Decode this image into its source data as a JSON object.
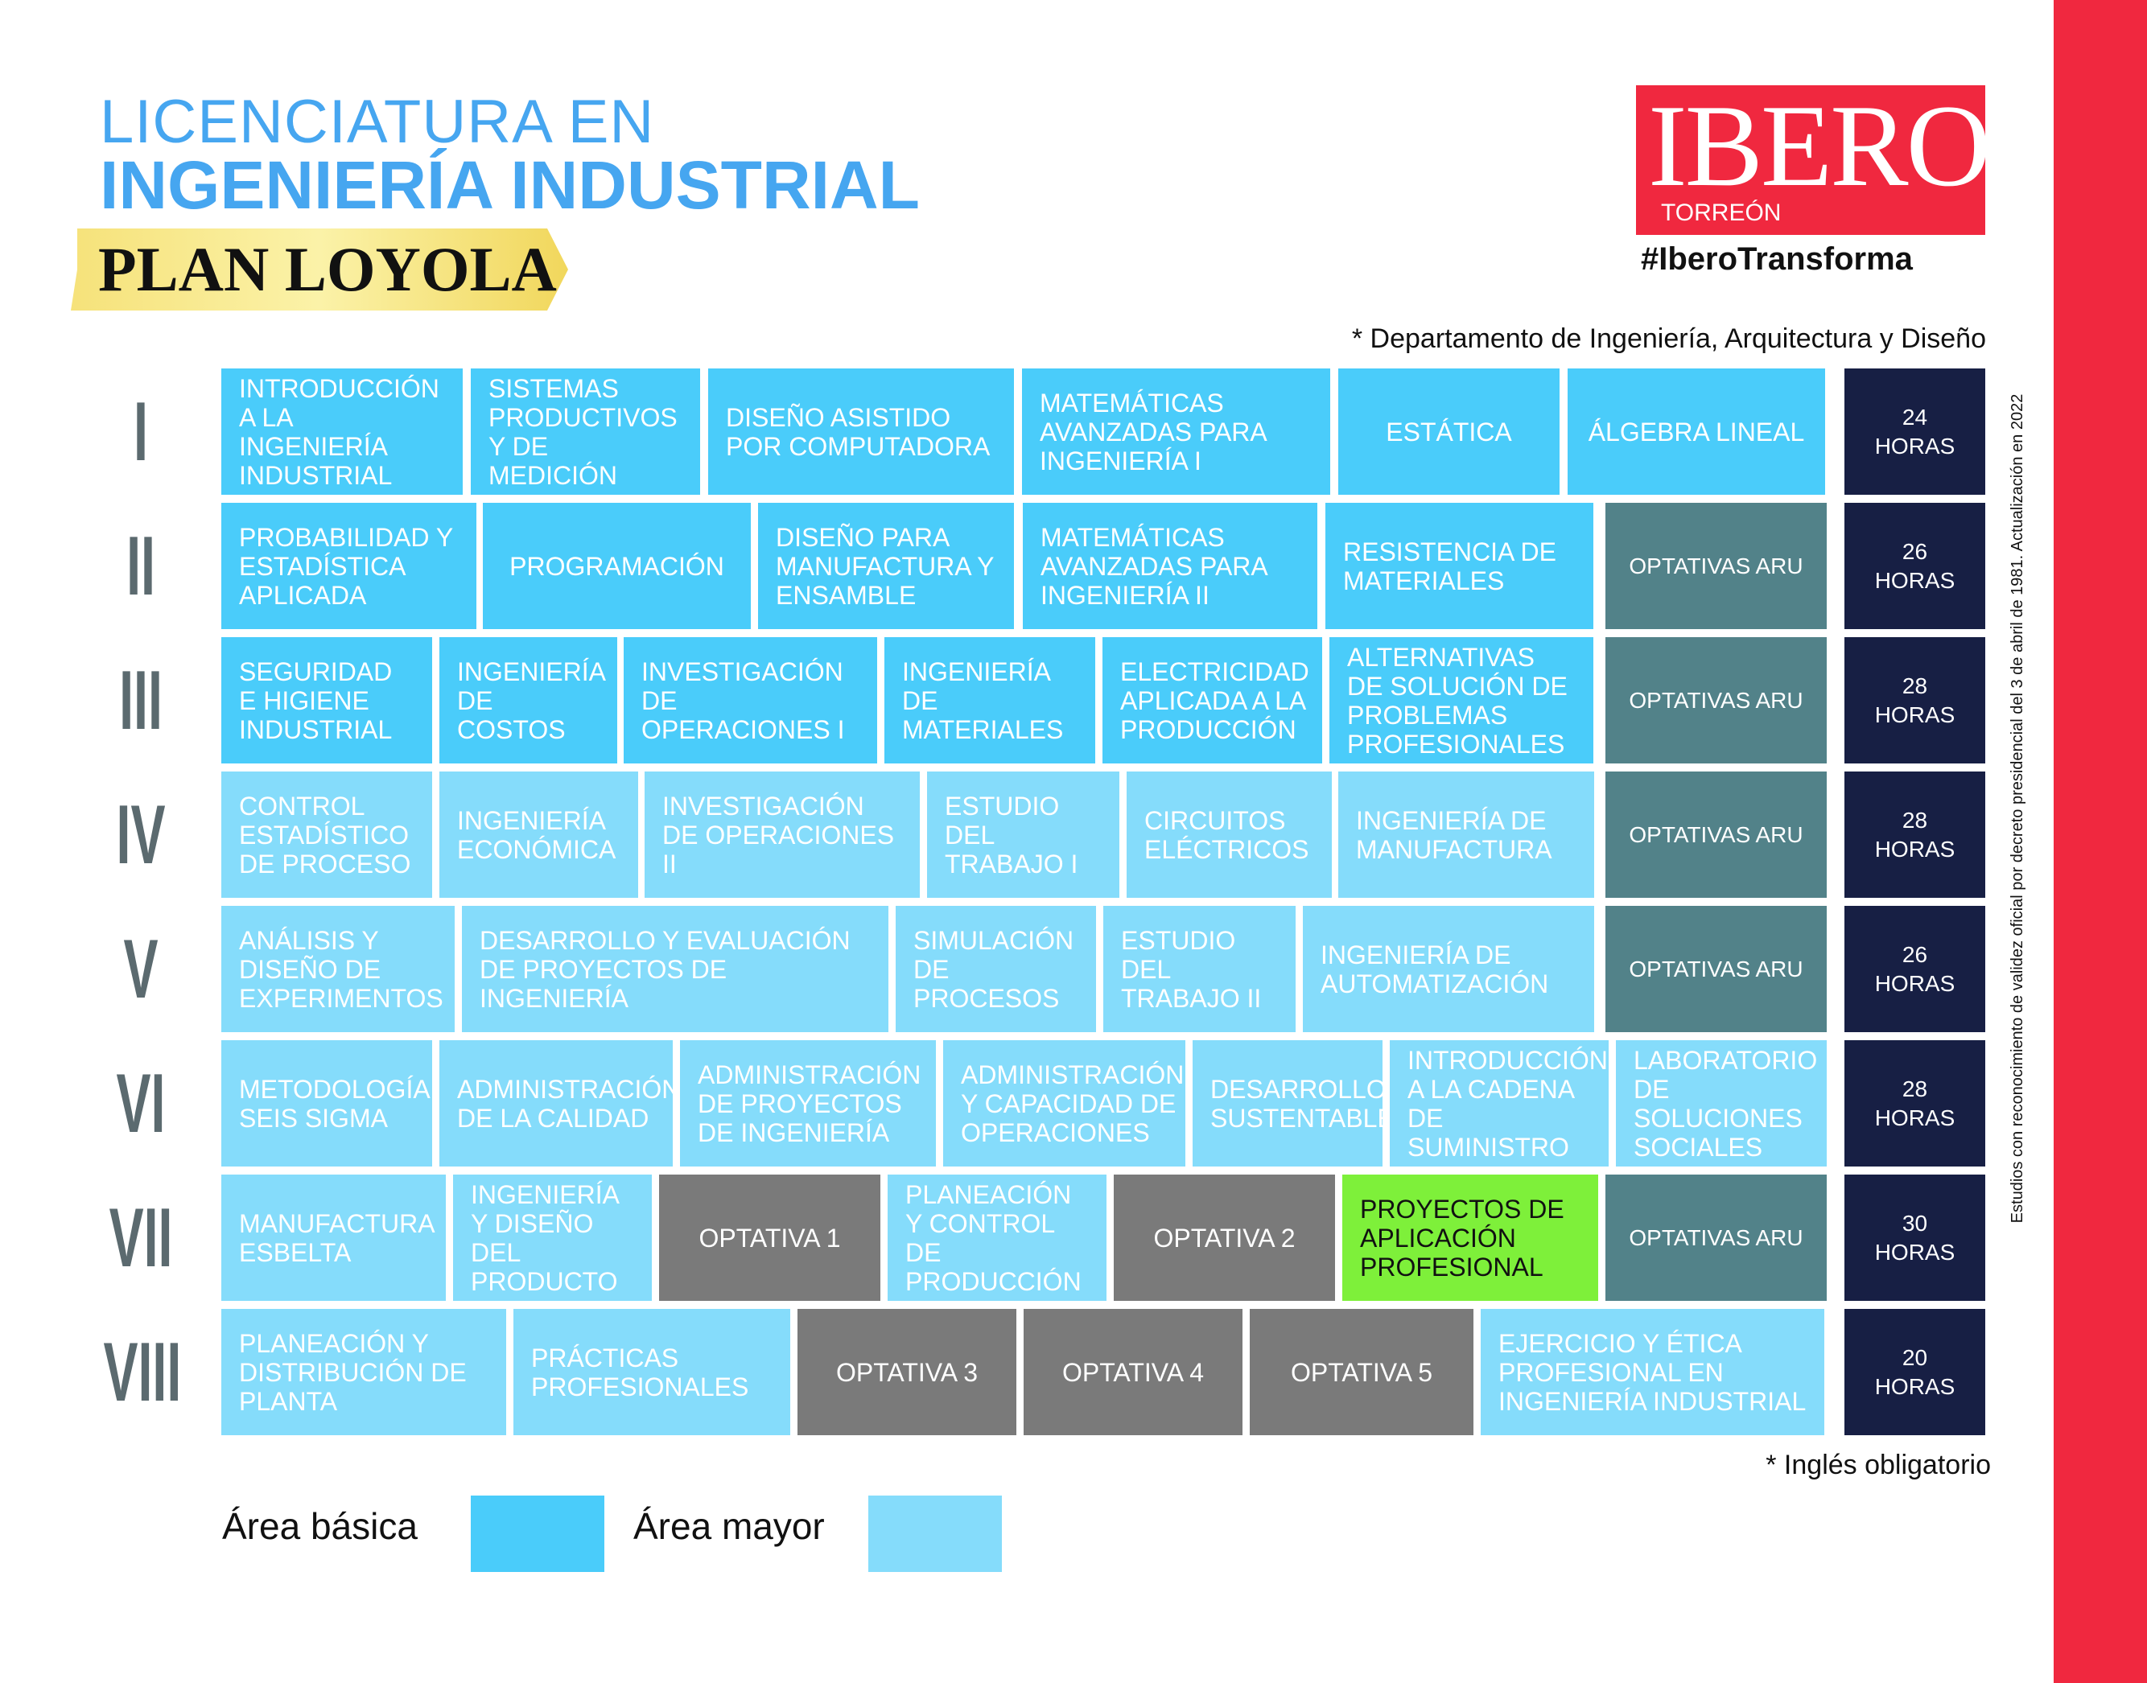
{
  "header": {
    "title_line1": "LICENCIATURA EN",
    "title_line2": "INGENIERÍA INDUSTRIAL",
    "plan": "PLAN LOYOLA"
  },
  "logo": {
    "name": "IBERO",
    "campus": "TORREÓN",
    "hashtag": "#IberoTransforma"
  },
  "department_note": "* Departamento de Ingeniería, Arquitectura y Diseño",
  "english_note": "* Inglés obligatorio",
  "side_note": "Estudios con reconocimiento de validez oficial por decreto presidencial del 3 de abril de 1981. Actualización en 2022",
  "colors": {
    "basic": "#4accfa",
    "major": "#85dcfb",
    "optativa": "#7a7a7a",
    "aru": "#528289",
    "highlight": "#7ef03a",
    "hours": "#171f44",
    "brand_red": "#f0283f",
    "title_blue": "#46a6f0"
  },
  "semesters": [
    {
      "roman": "I",
      "hours": "24 HORAS",
      "courses": [
        {
          "name": "INTRODUCCIÓN A LA INGENIERÍA INDUSTRIAL",
          "area": "basic"
        },
        {
          "name": "SISTEMAS PRODUCTIVOS Y DE MEDICIÓN",
          "area": "basic"
        },
        {
          "name": "DISEÑO ASISTIDO POR COMPUTADORA",
          "area": "basic"
        },
        {
          "name": "MATEMÁTICAS AVANZADAS PARA INGENIERÍA I",
          "area": "basic"
        },
        {
          "name": "ESTÁTICA",
          "area": "basic"
        },
        {
          "name": "ÁLGEBRA LINEAL",
          "area": "basic"
        }
      ]
    },
    {
      "roman": "II",
      "hours": "26 HORAS",
      "courses": [
        {
          "name": "PROBABILIDAD Y ESTADÍSTICA APLICADA",
          "area": "basic"
        },
        {
          "name": "PROGRAMACIÓN",
          "area": "basic"
        },
        {
          "name": "DISEÑO PARA MANUFACTURA Y ENSAMBLE",
          "area": "basic"
        },
        {
          "name": "MATEMÁTICAS AVANZADAS PARA INGENIERÍA II",
          "area": "basic"
        },
        {
          "name": "RESISTENCIA DE MATERIALES",
          "area": "basic"
        },
        {
          "name": "OPTATIVAS ARU",
          "area": "aru"
        }
      ]
    },
    {
      "roman": "III",
      "hours": "28 HORAS",
      "courses": [
        {
          "name": "SEGURIDAD E HIGIENE INDUSTRIAL",
          "area": "basic"
        },
        {
          "name": "INGENIERÍA DE COSTOS",
          "area": "basic"
        },
        {
          "name": "INVESTIGACIÓN DE OPERACIONES I",
          "area": "basic"
        },
        {
          "name": "INGENIERÍA DE MATERIALES",
          "area": "basic"
        },
        {
          "name": "ELECTRICIDAD APLICADA A LA PRODUCCIÓN",
          "area": "basic"
        },
        {
          "name": "ALTERNATIVAS DE SOLUCIÓN DE PROBLEMAS PROFESIONALES",
          "area": "basic"
        },
        {
          "name": "OPTATIVAS ARU",
          "area": "aru"
        }
      ]
    },
    {
      "roman": "IV",
      "hours": "28 HORAS",
      "courses": [
        {
          "name": "CONTROL ESTADÍSTICO DE PROCESO",
          "area": "major"
        },
        {
          "name": "INGENIERÍA ECONÓMICA",
          "area": "major"
        },
        {
          "name": "INVESTIGACIÓN DE OPERACIONES II",
          "area": "major"
        },
        {
          "name": "ESTUDIO DEL TRABAJO I",
          "area": "major"
        },
        {
          "name": "CIRCUITOS ELÉCTRICOS",
          "area": "major"
        },
        {
          "name": "INGENIERÍA DE MANUFACTURA",
          "area": "major"
        },
        {
          "name": "OPTATIVAS ARU",
          "area": "aru"
        }
      ]
    },
    {
      "roman": "V",
      "hours": "26 HORAS",
      "courses": [
        {
          "name": "ANÁLISIS Y DISEÑO DE EXPERIMENTOS",
          "area": "major"
        },
        {
          "name": "DESARROLLO  Y EVALUACIÓN DE PROYECTOS DE INGENIERÍA",
          "area": "major"
        },
        {
          "name": "SIMULACIÓN DE PROCESOS",
          "area": "major"
        },
        {
          "name": "ESTUDIO DEL TRABAJO II",
          "area": "major"
        },
        {
          "name": "INGENIERÍA DE AUTOMATIZACIÓN",
          "area": "major"
        },
        {
          "name": "OPTATIVAS ARU",
          "area": "aru"
        }
      ]
    },
    {
      "roman": "VI",
      "hours": "28 HORAS",
      "courses": [
        {
          "name": "METODOLOGÍA SEIS SIGMA",
          "area": "major"
        },
        {
          "name": "ADMINISTRACIÓN DE LA CALIDAD",
          "area": "major"
        },
        {
          "name": "ADMINISTRACIÓN DE PROYECTOS DE INGENIERÍA",
          "area": "major"
        },
        {
          "name": "ADMINISTRACIÓN Y CAPACIDAD DE OPERACIONES",
          "area": "major"
        },
        {
          "name": "DESARROLLO SUSTENTABLE",
          "area": "major"
        },
        {
          "name": "INTRODUCCIÓN A LA CADENA DE SUMINISTRO",
          "area": "major"
        },
        {
          "name": "LABORATORIO DE SOLUCIONES SOCIALES",
          "area": "major"
        }
      ]
    },
    {
      "roman": "VII",
      "hours": "30 HORAS",
      "courses": [
        {
          "name": "MANUFACTURA ESBELTA",
          "area": "major"
        },
        {
          "name": "INGENIERÍA Y DISEÑO DEL PRODUCTO",
          "area": "major"
        },
        {
          "name": "OPTATIVA 1",
          "area": "optativa"
        },
        {
          "name": "PLANEACIÓN Y CONTROL DE PRODUCCIÓN",
          "area": "major"
        },
        {
          "name": "OPTATIVA 2",
          "area": "optativa"
        },
        {
          "name": "PROYECTOS DE APLICACIÓN PROFESIONAL",
          "area": "highlight"
        },
        {
          "name": "OPTATIVAS ARU",
          "area": "aru"
        }
      ]
    },
    {
      "roman": "VIII",
      "hours": "20 HORAS",
      "courses": [
        {
          "name": "PLANEACIÓN Y DISTRIBUCIÓN DE PLANTA",
          "area": "major"
        },
        {
          "name": "PRÁCTICAS PROFESIONALES",
          "area": "major"
        },
        {
          "name": "OPTATIVA 3",
          "area": "optativa"
        },
        {
          "name": "OPTATIVA 4",
          "area": "optativa"
        },
        {
          "name": "OPTATIVA 5",
          "area": "optativa"
        },
        {
          "name": "EJERCICIO Y ÉTICA PROFESIONAL EN INGENIERÍA INDUSTRIAL",
          "area": "major"
        }
      ]
    }
  ],
  "legend": {
    "basic_label": "Área básica",
    "major_label": "Área mayor"
  }
}
